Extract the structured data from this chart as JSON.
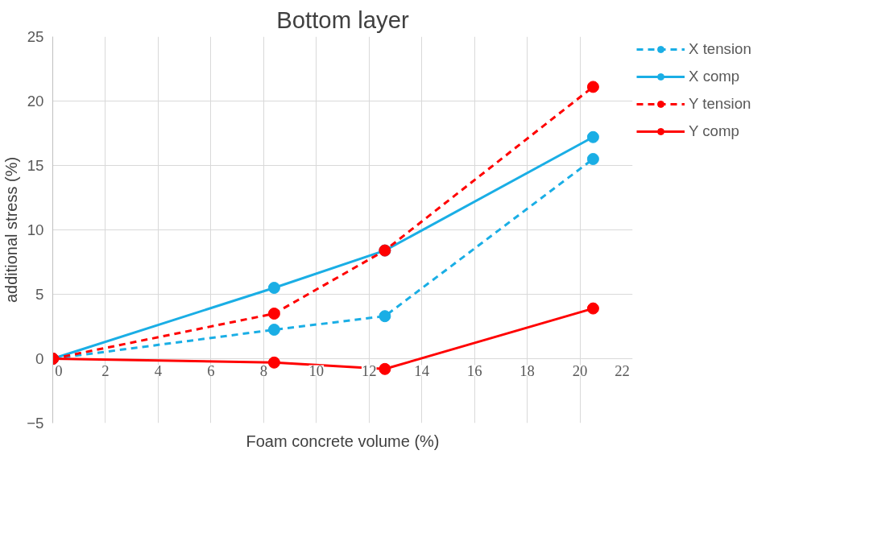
{
  "chart_data": {
    "type": "line",
    "title": "Bottom layer",
    "xlabel": "Foam concrete volume (%)",
    "ylabel": "additional stress (%)",
    "x": [
      0,
      8.4,
      12.6,
      20.5
    ],
    "series": [
      {
        "name": "X tension",
        "color": "#1aaee5",
        "line_style": "dashed",
        "values": [
          0,
          2.25,
          3.3,
          15.5
        ]
      },
      {
        "name": "X comp",
        "color": "#1aaee5",
        "line_style": "solid",
        "values": [
          0,
          5.5,
          8.4,
          17.2
        ]
      },
      {
        "name": "Y tension",
        "color": "#ff0000",
        "line_style": "dashed",
        "values": [
          0,
          3.5,
          8.4,
          21.1
        ]
      },
      {
        "name": "Y comp",
        "color": "#ff0000",
        "line_style": "solid",
        "values": [
          0,
          -0.3,
          -0.8,
          3.9
        ]
      }
    ],
    "xlim": [
      0,
      22
    ],
    "xticks": [
      0,
      2,
      4,
      6,
      8,
      10,
      12,
      14,
      16,
      18,
      20,
      22
    ],
    "ylim": [
      -5,
      25
    ],
    "yticks": [
      -5,
      0,
      5,
      10,
      15,
      20,
      25
    ],
    "grid": true,
    "legend": "right",
    "marker": "circle"
  }
}
